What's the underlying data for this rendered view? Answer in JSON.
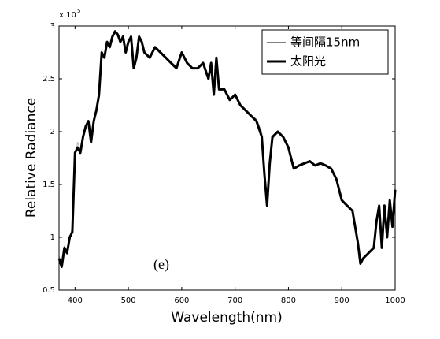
{
  "chart_data": {
    "type": "line",
    "x_label": "Wavelength(nm)",
    "y_label": "Relative Radiance",
    "axis_multiplier": {
      "base": "x 10",
      "exponent": "5"
    },
    "annotation": "(e)",
    "xlim": [
      370,
      1000
    ],
    "ylim": [
      0.5,
      3
    ],
    "xticks": [
      400,
      500,
      600,
      700,
      800,
      900,
      1000
    ],
    "yticks": [
      0.5,
      1,
      1.5,
      2,
      2.5,
      3
    ],
    "legend": "upper right",
    "x": [
      370,
      375,
      380,
      385,
      390,
      395,
      400,
      405,
      410,
      415,
      420,
      425,
      430,
      435,
      440,
      445,
      450,
      455,
      460,
      465,
      470,
      475,
      480,
      485,
      490,
      495,
      500,
      505,
      510,
      515,
      520,
      525,
      530,
      540,
      550,
      560,
      570,
      580,
      590,
      600,
      610,
      620,
      630,
      640,
      650,
      655,
      660,
      665,
      670,
      680,
      690,
      700,
      710,
      720,
      730,
      740,
      750,
      755,
      760,
      765,
      770,
      780,
      790,
      800,
      810,
      820,
      830,
      840,
      850,
      860,
      870,
      880,
      890,
      900,
      910,
      920,
      930,
      935,
      940,
      950,
      960,
      965,
      970,
      975,
      980,
      985,
      990,
      995,
      1000
    ],
    "series": [
      {
        "name": "等间隔15nm",
        "color": "#b0b0b0",
        "width": 1,
        "values": [
          0.82,
          0.75,
          0.92,
          0.88,
          1.0,
          1.1,
          1.75,
          1.9,
          1.82,
          1.95,
          2.05,
          2.1,
          1.95,
          2.08,
          2.2,
          2.38,
          2.72,
          2.72,
          2.83,
          2.82,
          2.88,
          2.93,
          2.9,
          2.86,
          2.88,
          2.77,
          2.84,
          2.88,
          2.63,
          2.7,
          2.88,
          2.84,
          2.76,
          2.7,
          2.78,
          2.75,
          2.7,
          2.66,
          2.62,
          2.73,
          2.66,
          2.6,
          2.6,
          2.64,
          2.52,
          2.62,
          2.4,
          2.66,
          2.42,
          2.4,
          2.32,
          2.33,
          2.26,
          2.2,
          2.16,
          2.12,
          2.0,
          1.65,
          1.38,
          1.7,
          1.93,
          1.99,
          1.95,
          1.84,
          1.66,
          1.68,
          1.7,
          1.71,
          1.68,
          1.7,
          1.67,
          1.64,
          1.55,
          1.37,
          1.3,
          1.26,
          0.98,
          0.78,
          0.8,
          0.86,
          0.92,
          1.12,
          1.25,
          0.95,
          1.25,
          1.05,
          1.3,
          1.12,
          1.4
        ]
      },
      {
        "name": "太阳光",
        "color": "#000000",
        "width": 3,
        "values": [
          0.8,
          0.72,
          0.9,
          0.85,
          1.0,
          1.05,
          1.8,
          1.85,
          1.8,
          1.95,
          2.05,
          2.1,
          1.9,
          2.1,
          2.2,
          2.35,
          2.75,
          2.7,
          2.85,
          2.8,
          2.9,
          2.95,
          2.92,
          2.85,
          2.9,
          2.75,
          2.85,
          2.9,
          2.6,
          2.7,
          2.9,
          2.85,
          2.75,
          2.7,
          2.8,
          2.75,
          2.7,
          2.65,
          2.6,
          2.75,
          2.65,
          2.6,
          2.6,
          2.65,
          2.5,
          2.65,
          2.35,
          2.7,
          2.4,
          2.4,
          2.3,
          2.35,
          2.25,
          2.2,
          2.15,
          2.1,
          1.95,
          1.6,
          1.3,
          1.7,
          1.95,
          2.0,
          1.95,
          1.85,
          1.65,
          1.68,
          1.7,
          1.72,
          1.68,
          1.7,
          1.68,
          1.65,
          1.55,
          1.35,
          1.3,
          1.25,
          0.95,
          0.75,
          0.8,
          0.85,
          0.9,
          1.15,
          1.3,
          0.9,
          1.3,
          1.0,
          1.35,
          1.1,
          1.45
        ]
      }
    ]
  }
}
